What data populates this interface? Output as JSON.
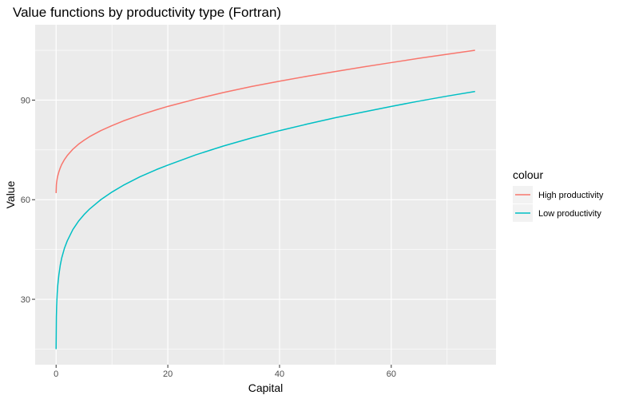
{
  "chart_data": {
    "type": "line",
    "title": "Value functions by productivity type (Fortran)",
    "xlabel": "Capital",
    "ylabel": "Value",
    "xlim": [
      -3.75,
      78.75
    ],
    "ylim": [
      10.3,
      112.7
    ],
    "x_ticks": [
      0,
      20,
      40,
      60
    ],
    "y_ticks": [
      30,
      60,
      90
    ],
    "grid": true,
    "legend": {
      "title": "colour",
      "placement": "right"
    },
    "series": [
      {
        "name": "High productivity",
        "color": "#F8766D",
        "x": [
          0,
          0.05,
          0.1,
          0.2,
          0.3,
          0.5,
          0.75,
          1,
          1.5,
          2,
          3,
          4,
          5,
          6,
          8,
          10,
          12,
          15,
          18,
          20,
          25,
          30,
          35,
          40,
          45,
          50,
          55,
          60,
          65,
          70,
          75
        ],
        "y": [
          62.0,
          64.5,
          65.3,
          66.4,
          67.2,
          68.4,
          69.6,
          70.6,
          72.1,
          73.3,
          75.2,
          76.7,
          77.9,
          79.0,
          80.8,
          82.3,
          83.7,
          85.5,
          87.1,
          88.1,
          90.3,
          92.3,
          94.1,
          95.7,
          97.2,
          98.6,
          100.0,
          101.3,
          102.6,
          103.8,
          105.0
        ]
      },
      {
        "name": "Low productivity",
        "color": "#00BFC4",
        "x": [
          0,
          0.05,
          0.1,
          0.2,
          0.3,
          0.5,
          0.75,
          1,
          1.5,
          2,
          3,
          4,
          5,
          6,
          8,
          10,
          12,
          15,
          18,
          20,
          25,
          30,
          35,
          40,
          45,
          50,
          55,
          60,
          65,
          70,
          75
        ],
        "y": [
          15.0,
          24.7,
          28.0,
          31.8,
          34.2,
          37.4,
          40.3,
          42.4,
          45.4,
          47.6,
          51.0,
          53.5,
          55.5,
          57.2,
          60.0,
          62.3,
          64.3,
          66.9,
          69.1,
          70.4,
          73.5,
          76.2,
          78.6,
          80.8,
          82.8,
          84.7,
          86.4,
          88.1,
          89.7,
          91.2,
          92.6
        ]
      }
    ]
  }
}
